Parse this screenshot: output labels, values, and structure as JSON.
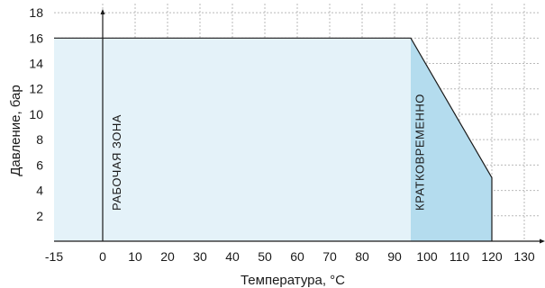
{
  "chart_data": {
    "type": "area",
    "xlabel": "Температура, °С",
    "ylabel": "Давление, бар",
    "xlim": [
      -15,
      135
    ],
    "ylim": [
      0,
      19
    ],
    "x_ticks": [
      -15,
      0,
      10,
      20,
      30,
      40,
      50,
      60,
      70,
      80,
      90,
      100,
      110,
      120,
      130
    ],
    "y_ticks": [
      2,
      4,
      6,
      8,
      10,
      12,
      14,
      16,
      18
    ],
    "grid": true,
    "series": [
      {
        "x": [
          -15,
          95,
          120,
          120
        ],
        "y": [
          16,
          16,
          5,
          0
        ]
      }
    ],
    "zones": [
      {
        "label": "РАБОЧАЯ ЗОНА",
        "x_range": [
          -15,
          95
        ],
        "color": "#e4f2f9"
      },
      {
        "label": "КРАТКОВРЕМЕННО",
        "x_range": [
          95,
          120
        ],
        "color": "#b4dcee"
      }
    ],
    "line_color": "#1a1a1a"
  }
}
